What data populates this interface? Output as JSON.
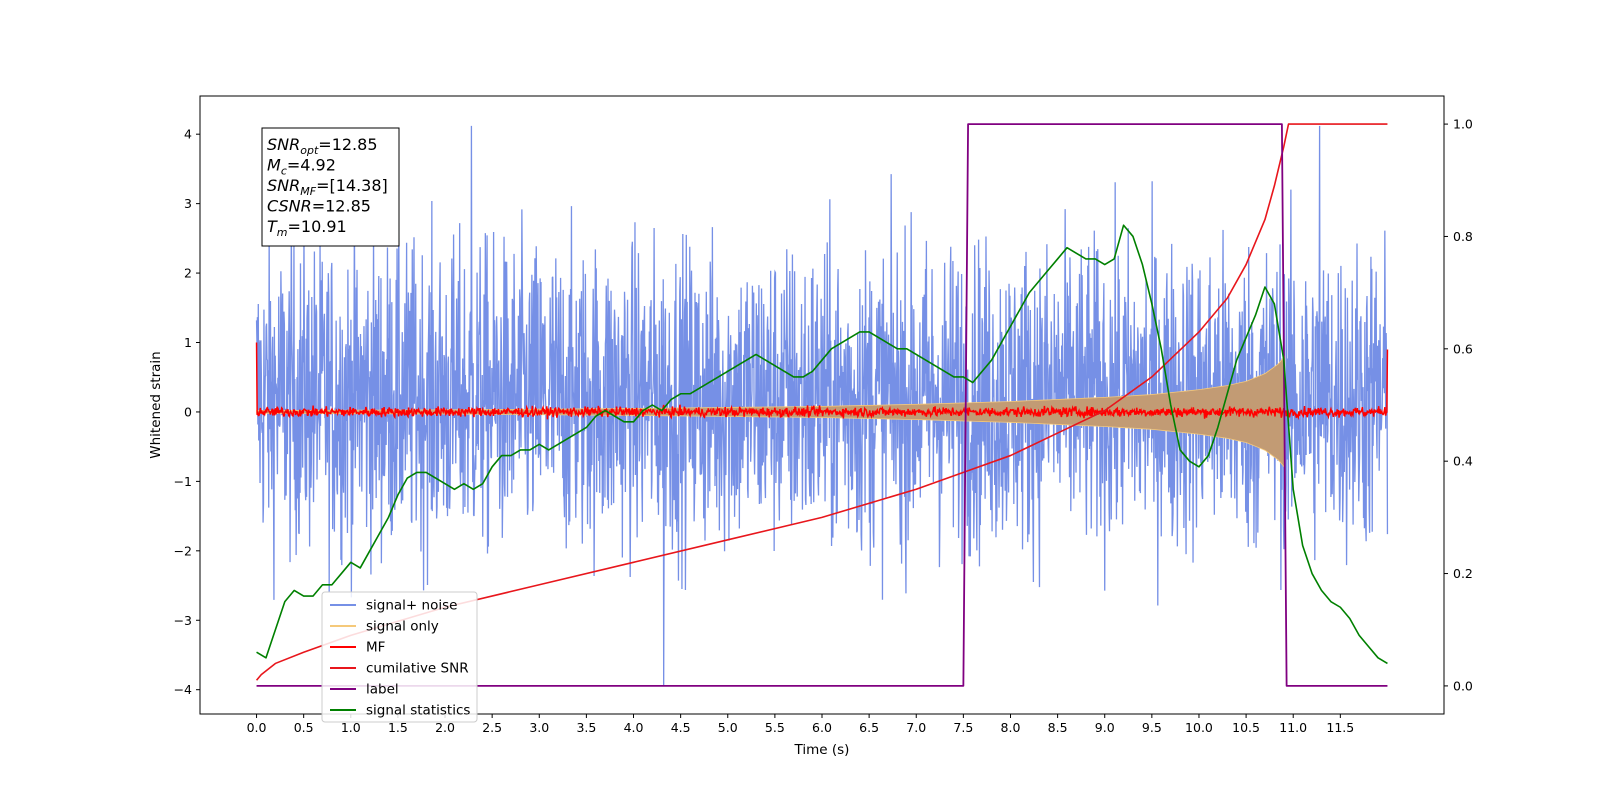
{
  "chart_data": {
    "type": "line",
    "title": "",
    "xlabel": "Time (s)",
    "ylabel": "Whitened strain",
    "y2label": "",
    "xlim": [
      -0.6,
      12.6
    ],
    "ylim": [
      -4.35,
      4.55
    ],
    "y2lim": [
      -0.05,
      1.05
    ],
    "grid": false,
    "legend_position": "lower-left",
    "x_ticks": [
      0.0,
      0.5,
      1.0,
      1.5,
      2.0,
      2.5,
      3.0,
      3.5,
      4.0,
      4.5,
      5.0,
      5.5,
      6.0,
      6.5,
      7.0,
      7.5,
      8.0,
      8.5,
      9.0,
      9.5,
      10.0,
      10.5,
      11.0,
      11.5
    ],
    "x_tick_labels": [
      "0.0",
      "0.5",
      "1.0",
      "1.5",
      "2.0",
      "2.5",
      "3.0",
      "3.5",
      "4.0",
      "4.5",
      "5.0",
      "5.5",
      "6.0",
      "6.5",
      "7.0",
      "7.5",
      "8.0",
      "8.5",
      "9.0",
      "9.5",
      "10.0",
      "10.5",
      "11.0",
      "11.5"
    ],
    "y_ticks": [
      -4,
      -3,
      -2,
      -1,
      0,
      1,
      2,
      3,
      4
    ],
    "y_tick_labels": [
      "−4",
      "−3",
      "−2",
      "−1",
      "0",
      "1",
      "2",
      "3",
      "4"
    ],
    "y2_ticks": [
      0.0,
      0.2,
      0.4,
      0.6,
      0.8,
      1.0
    ],
    "y2_tick_labels": [
      "0.0",
      "0.2",
      "0.4",
      "0.6",
      "0.8",
      "1.0"
    ],
    "annotation": {
      "lines": [
        {
          "main": "SNR",
          "sub": "opt",
          "rest": "=12.85"
        },
        {
          "main": "M",
          "sub": "c",
          "rest": "=4.92"
        },
        {
          "main": "SNR",
          "sub": "MF",
          "rest": "=[14.38]"
        },
        {
          "main": "CSNR",
          "sub": "",
          "rest": "=12.85"
        },
        {
          "main": "T",
          "sub": "m",
          "rest": "=10.91"
        }
      ]
    },
    "series": [
      {
        "name": "signal+ noise",
        "color": "#7690e6",
        "axis": "left",
        "style": "noise-band",
        "x_range": [
          0.0,
          12.0
        ],
        "typical_range": [
          -1.8,
          2.2
        ],
        "extremes": [
          -3.95,
          4.12
        ]
      },
      {
        "name": "signal only",
        "color": "#f5c97a",
        "axis": "left",
        "style": "chirp-envelope",
        "x": [
          0.0,
          2.0,
          4.0,
          6.0,
          7.0,
          8.0,
          9.0,
          9.5,
          10.0,
          10.3,
          10.5,
          10.7,
          10.85,
          10.91
        ],
        "amplitude": [
          0.02,
          0.03,
          0.05,
          0.08,
          0.11,
          0.15,
          0.21,
          0.25,
          0.32,
          0.38,
          0.44,
          0.55,
          0.7,
          0.8
        ]
      },
      {
        "name": "MF",
        "color": "#ff0000",
        "axis": "left",
        "style": "noisy-flat",
        "x_range": [
          0.0,
          12.0
        ],
        "level": 0.0,
        "spread": 0.1,
        "edge_value": 1.0
      },
      {
        "name": "cumilative SNR",
        "color": "#e8161c",
        "axis": "right",
        "x": [
          0.0,
          0.05,
          0.2,
          0.5,
          1.0,
          2.0,
          3.0,
          4.0,
          5.0,
          6.0,
          7.0,
          7.5,
          8.0,
          8.5,
          9.0,
          9.5,
          10.0,
          10.3,
          10.5,
          10.7,
          10.8,
          10.9,
          10.95,
          11.0,
          12.0
        ],
        "values": [
          0.01,
          0.02,
          0.04,
          0.06,
          0.09,
          0.14,
          0.18,
          0.22,
          0.26,
          0.3,
          0.35,
          0.38,
          0.41,
          0.45,
          0.49,
          0.55,
          0.63,
          0.69,
          0.75,
          0.83,
          0.89,
          0.96,
          1.0,
          1.0,
          1.0
        ]
      },
      {
        "name": "label",
        "color": "#800080",
        "axis": "right",
        "x": [
          0.0,
          7.5,
          7.55,
          10.88,
          10.93,
          12.0
        ],
        "values": [
          0.0,
          0.0,
          1.0,
          1.0,
          0.0,
          0.0
        ]
      },
      {
        "name": "signal statistics",
        "color": "#008000",
        "axis": "right",
        "x": [
          0.0,
          0.1,
          0.2,
          0.3,
          0.4,
          0.5,
          0.6,
          0.7,
          0.8,
          0.9,
          1.0,
          1.1,
          1.2,
          1.3,
          1.4,
          1.5,
          1.6,
          1.7,
          1.8,
          1.9,
          2.0,
          2.1,
          2.2,
          2.3,
          2.4,
          2.5,
          2.6,
          2.7,
          2.8,
          2.9,
          3.0,
          3.1,
          3.2,
          3.3,
          3.4,
          3.5,
          3.6,
          3.7,
          3.8,
          3.9,
          4.0,
          4.1,
          4.2,
          4.3,
          4.4,
          4.5,
          4.6,
          4.7,
          4.8,
          4.9,
          5.0,
          5.1,
          5.2,
          5.3,
          5.4,
          5.5,
          5.6,
          5.7,
          5.8,
          5.9,
          6.0,
          6.1,
          6.2,
          6.3,
          6.4,
          6.5,
          6.6,
          6.7,
          6.8,
          6.9,
          7.0,
          7.1,
          7.2,
          7.3,
          7.4,
          7.5,
          7.6,
          7.7,
          7.8,
          7.9,
          8.0,
          8.1,
          8.2,
          8.3,
          8.4,
          8.5,
          8.6,
          8.7,
          8.8,
          8.9,
          9.0,
          9.1,
          9.2,
          9.3,
          9.4,
          9.5,
          9.6,
          9.7,
          9.8,
          9.9,
          10.0,
          10.1,
          10.2,
          10.3,
          10.4,
          10.5,
          10.6,
          10.7,
          10.8,
          10.9,
          11.0,
          11.1,
          11.2,
          11.3,
          11.4,
          11.5,
          11.6,
          11.7,
          11.8,
          11.9,
          12.0
        ],
        "values": [
          0.06,
          0.05,
          0.1,
          0.15,
          0.17,
          0.16,
          0.16,
          0.18,
          0.18,
          0.2,
          0.22,
          0.21,
          0.24,
          0.27,
          0.3,
          0.34,
          0.37,
          0.38,
          0.38,
          0.37,
          0.36,
          0.35,
          0.36,
          0.35,
          0.36,
          0.39,
          0.41,
          0.41,
          0.42,
          0.42,
          0.43,
          0.42,
          0.43,
          0.44,
          0.45,
          0.46,
          0.48,
          0.49,
          0.48,
          0.47,
          0.47,
          0.49,
          0.5,
          0.49,
          0.51,
          0.52,
          0.52,
          0.53,
          0.54,
          0.55,
          0.56,
          0.57,
          0.58,
          0.59,
          0.58,
          0.57,
          0.56,
          0.55,
          0.55,
          0.56,
          0.58,
          0.6,
          0.61,
          0.62,
          0.63,
          0.63,
          0.62,
          0.61,
          0.6,
          0.6,
          0.59,
          0.58,
          0.57,
          0.56,
          0.55,
          0.55,
          0.54,
          0.56,
          0.58,
          0.61,
          0.64,
          0.67,
          0.7,
          0.72,
          0.74,
          0.76,
          0.78,
          0.77,
          0.76,
          0.76,
          0.75,
          0.76,
          0.82,
          0.8,
          0.75,
          0.68,
          0.6,
          0.5,
          0.42,
          0.4,
          0.39,
          0.41,
          0.46,
          0.52,
          0.58,
          0.62,
          0.66,
          0.71,
          0.68,
          0.58,
          0.35,
          0.25,
          0.2,
          0.17,
          0.15,
          0.14,
          0.12,
          0.09,
          0.07,
          0.05,
          0.04
        ]
      }
    ]
  }
}
